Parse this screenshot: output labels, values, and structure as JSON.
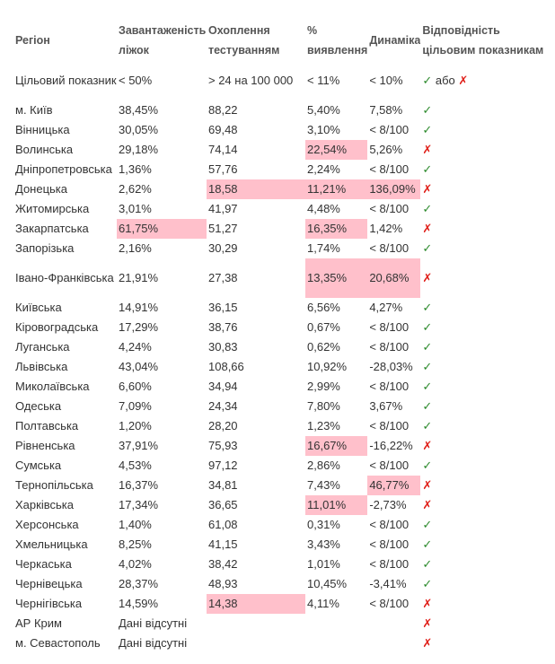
{
  "headers": [
    "Регіон",
    "Завантаженість ліжок",
    "Охоплення тестуванням",
    "% виявлення",
    "Динаміка",
    "Відповідність цільовим показникам"
  ],
  "target": {
    "region": "Цільовий показник",
    "beds": "< 50%",
    "testing": "> 24 на 100 000",
    "detection": "< 11%",
    "dynamics": "< 10%",
    "mark_ok": "✓",
    "mark_or": "або",
    "mark_bad": "✗"
  },
  "rows": [
    {
      "region": "м. Київ",
      "beds": "38,45%",
      "testing": "88,22",
      "detection": "5,40%",
      "dynamics": "7,58%",
      "mark": "✓",
      "ok": true,
      "hl": []
    },
    {
      "region": "Вінницька",
      "beds": "30,05%",
      "testing": "69,48",
      "detection": "3,10%",
      "dynamics": "< 8/100",
      "mark": "✓",
      "ok": true,
      "hl": []
    },
    {
      "region": "Волинська",
      "beds": "29,18%",
      "testing": "74,14",
      "detection": "22,54%",
      "dynamics": "5,26%",
      "mark": "✗",
      "ok": false,
      "hl": [
        "detection"
      ]
    },
    {
      "region": "Дніпропетровська",
      "beds": "1,36%",
      "testing": "57,76",
      "detection": "2,24%",
      "dynamics": "< 8/100",
      "mark": "✓",
      "ok": true,
      "hl": []
    },
    {
      "region": "Донецька",
      "beds": "2,62%",
      "testing": "18,58",
      "detection": "11,21%",
      "dynamics": "136,09%",
      "mark": "✗",
      "ok": false,
      "hl": [
        "testing",
        "detection",
        "dynamics"
      ]
    },
    {
      "region": "Житомирська",
      "beds": "3,01%",
      "testing": "41,97",
      "detection": "4,48%",
      "dynamics": "< 8/100",
      "mark": "✓",
      "ok": true,
      "hl": []
    },
    {
      "region": "Закарпатська",
      "beds": "61,75%",
      "testing": "51,27",
      "detection": "16,35%",
      "dynamics": "1,42%",
      "mark": "✗",
      "ok": false,
      "hl": [
        "beds",
        "detection"
      ]
    },
    {
      "region": "Запорізька",
      "beds": "2,16%",
      "testing": "30,29",
      "detection": "1,74%",
      "dynamics": "< 8/100",
      "mark": "✓",
      "ok": true,
      "hl": []
    },
    {
      "region": "Івано-Франківська",
      "beds": "21,91%",
      "testing": "27,38",
      "detection": "13,35%",
      "dynamics": "20,68%",
      "mark": "✗",
      "ok": false,
      "hl": [
        "detection",
        "dynamics"
      ],
      "tall": true
    },
    {
      "region": "Київська",
      "beds": "14,91%",
      "testing": "36,15",
      "detection": "6,56%",
      "dynamics": "4,27%",
      "mark": "✓",
      "ok": true,
      "hl": []
    },
    {
      "region": "Кіровоградська",
      "beds": "17,29%",
      "testing": "38,76",
      "detection": "0,67%",
      "dynamics": "< 8/100",
      "mark": "✓",
      "ok": true,
      "hl": []
    },
    {
      "region": "Луганська",
      "beds": "4,24%",
      "testing": "30,83",
      "detection": "0,62%",
      "dynamics": "< 8/100",
      "mark": "✓",
      "ok": true,
      "hl": []
    },
    {
      "region": "Львівська",
      "beds": "43,04%",
      "testing": "108,66",
      "detection": "10,92%",
      "dynamics": "-28,03%",
      "mark": "✓",
      "ok": true,
      "hl": []
    },
    {
      "region": "Миколаївська",
      "beds": "6,60%",
      "testing": "34,94",
      "detection": "2,99%",
      "dynamics": "< 8/100",
      "mark": "✓",
      "ok": true,
      "hl": []
    },
    {
      "region": "Одеська",
      "beds": "7,09%",
      "testing": "24,34",
      "detection": "7,80%",
      "dynamics": "3,67%",
      "mark": "✓",
      "ok": true,
      "hl": []
    },
    {
      "region": "Полтавська",
      "beds": "1,20%",
      "testing": "28,20",
      "detection": "1,23%",
      "dynamics": "< 8/100",
      "mark": "✓",
      "ok": true,
      "hl": []
    },
    {
      "region": "Рівненська",
      "beds": "37,91%",
      "testing": "75,93",
      "detection": "16,67%",
      "dynamics": "-16,22%",
      "mark": "✗",
      "ok": false,
      "hl": [
        "detection"
      ]
    },
    {
      "region": "Сумська",
      "beds": "4,53%",
      "testing": "97,12",
      "detection": "2,86%",
      "dynamics": "< 8/100",
      "mark": "✓",
      "ok": true,
      "hl": []
    },
    {
      "region": "Тернопільська",
      "beds": "16,37%",
      "testing": "34,81",
      "detection": "7,43%",
      "dynamics": "46,77%",
      "mark": "✗",
      "ok": false,
      "hl": [
        "dynamics"
      ]
    },
    {
      "region": "Харківська",
      "beds": "17,34%",
      "testing": "36,65",
      "detection": "11,01%",
      "dynamics": "-2,73%",
      "mark": "✗",
      "ok": false,
      "hl": [
        "detection"
      ]
    },
    {
      "region": "Херсонська",
      "beds": "1,40%",
      "testing": "61,08",
      "detection": "0,31%",
      "dynamics": "< 8/100",
      "mark": "✓",
      "ok": true,
      "hl": []
    },
    {
      "region": "Хмельницька",
      "beds": "8,25%",
      "testing": "41,15",
      "detection": "3,43%",
      "dynamics": "< 8/100",
      "mark": "✓",
      "ok": true,
      "hl": []
    },
    {
      "region": "Черкаська",
      "beds": "4,02%",
      "testing": "38,42",
      "detection": "1,01%",
      "dynamics": "< 8/100",
      "mark": "✓",
      "ok": true,
      "hl": []
    },
    {
      "region": "Чернівецька",
      "beds": "28,37%",
      "testing": "48,93",
      "detection": "10,45%",
      "dynamics": "-3,41%",
      "mark": "✓",
      "ok": true,
      "hl": []
    },
    {
      "region": "Чернігівська",
      "beds": "14,59%",
      "testing": "14,38",
      "detection": "4,11%",
      "dynamics": "< 8/100",
      "mark": "✗",
      "ok": false,
      "hl": [
        "testing"
      ]
    },
    {
      "region": "АР Крим",
      "beds": "Дані відсутні",
      "testing": "",
      "detection": "",
      "dynamics": "",
      "mark": "✗",
      "ok": false,
      "hl": []
    },
    {
      "region": "м. Севастополь",
      "beds": "Дані відсутні",
      "testing": "",
      "detection": "",
      "dynamics": "",
      "mark": "✗",
      "ok": false,
      "hl": []
    }
  ],
  "colors": {
    "highlight": "#ffc0cb",
    "ok": "#2e8b2e",
    "bad": "#e0201a"
  }
}
